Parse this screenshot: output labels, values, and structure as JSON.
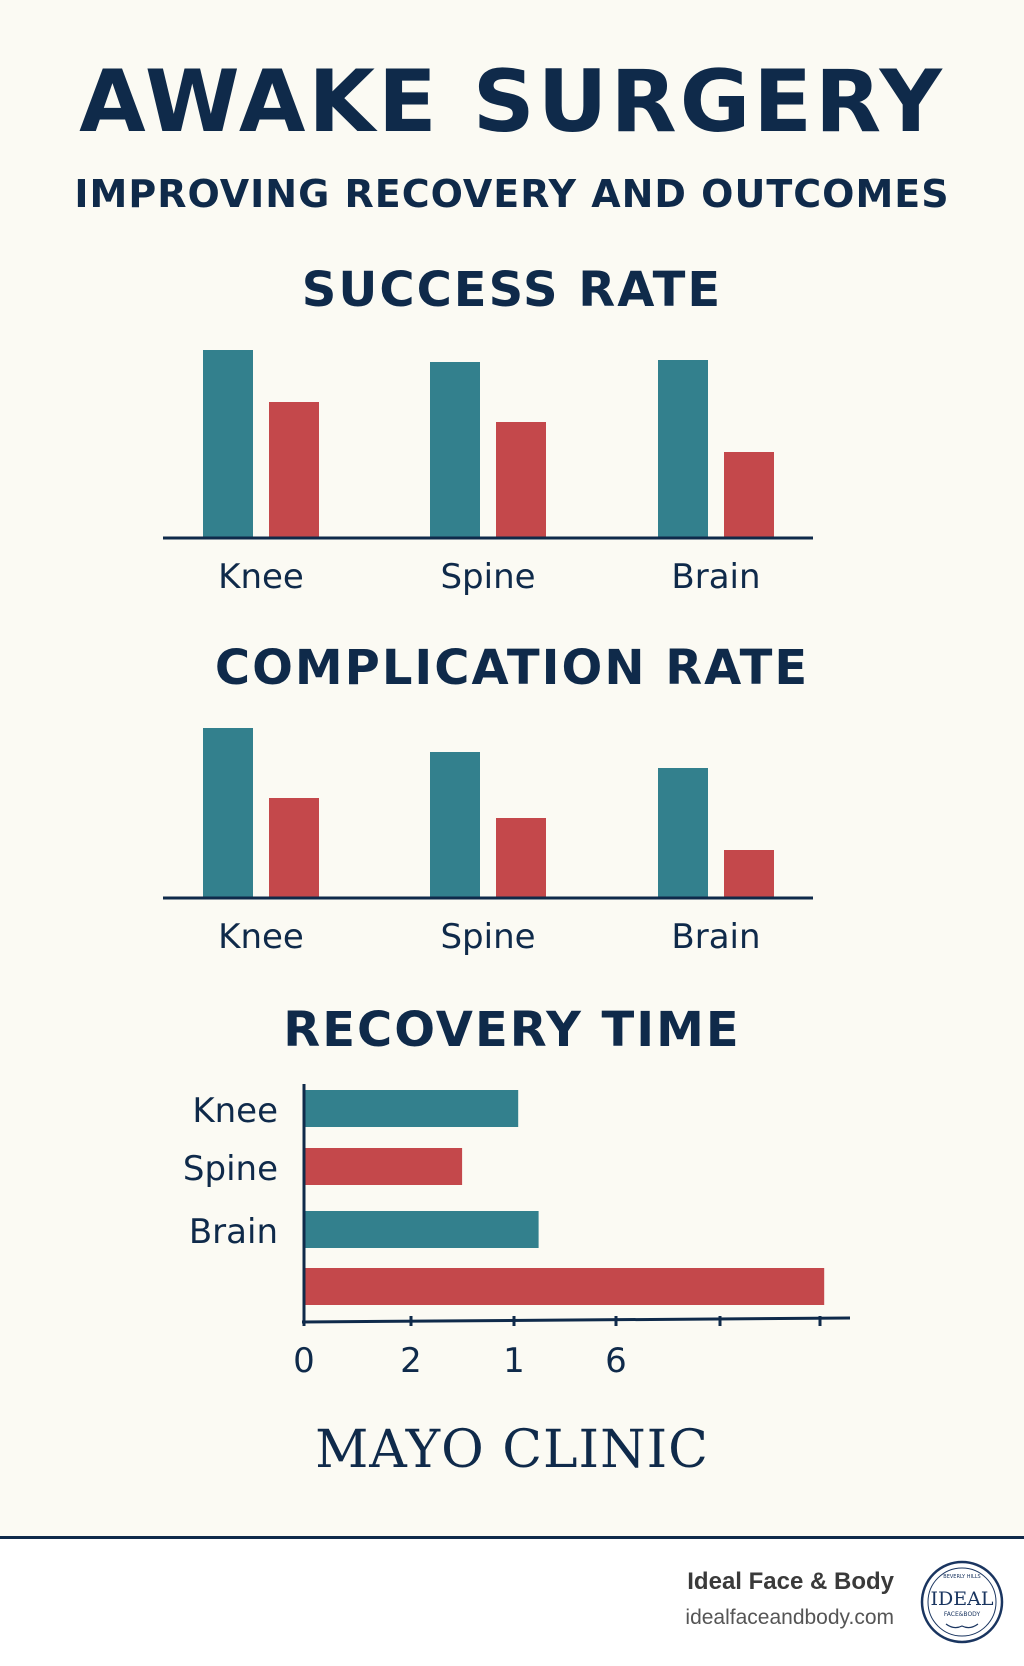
{
  "header": {
    "title": "AWAKE SURGERY",
    "subtitle": "IMPROVING RECOVERY AND OUTCOMES"
  },
  "colors": {
    "teal": "#33808d",
    "red": "#c4484b",
    "navy": "#0f2a4a"
  },
  "chart_data": [
    {
      "type": "bar",
      "title": "SUCCESS RATE",
      "categories": [
        "Knee",
        "Spine",
        "Brain"
      ],
      "series": [
        {
          "color": "#33808d",
          "values": [
            94,
            88,
            89
          ]
        },
        {
          "color": "#c4484b",
          "values": [
            68,
            58,
            43
          ]
        }
      ],
      "ylim": [
        0,
        100
      ],
      "grid": false
    },
    {
      "type": "bar",
      "title": "COMPLICATION RATE",
      "categories": [
        "Knee",
        "Spine",
        "Brain"
      ],
      "series": [
        {
          "color": "#33808d",
          "values": [
            85,
            73,
            65
          ]
        },
        {
          "color": "#c4484b",
          "values": [
            50,
            40,
            24
          ]
        }
      ],
      "ylim": [
        0,
        100
      ],
      "grid": false
    },
    {
      "type": "bar",
      "orientation": "horizontal",
      "title": "RECOVERY TIME",
      "categories": [
        "Knee",
        "Spine",
        "Brain",
        ""
      ],
      "bars": [
        {
          "color": "#33808d",
          "value": 2.1
        },
        {
          "color": "#c4484b",
          "value": 1.55
        },
        {
          "color": "#33808d",
          "value": 2.3
        },
        {
          "color": "#c4484b",
          "value": 5.1
        }
      ],
      "xticks": [
        "0",
        "2",
        "1",
        "6",
        "",
        ""
      ],
      "grid": false
    }
  ],
  "brand": {
    "name": "MAYO CLINIC"
  },
  "footer": {
    "name": "Ideal Face & Body",
    "url": "idealfaceandbody.com",
    "logo": {
      "word": "IDEAL",
      "top": "BEVERLY HILLS",
      "sub": "FACE&BODY"
    }
  }
}
